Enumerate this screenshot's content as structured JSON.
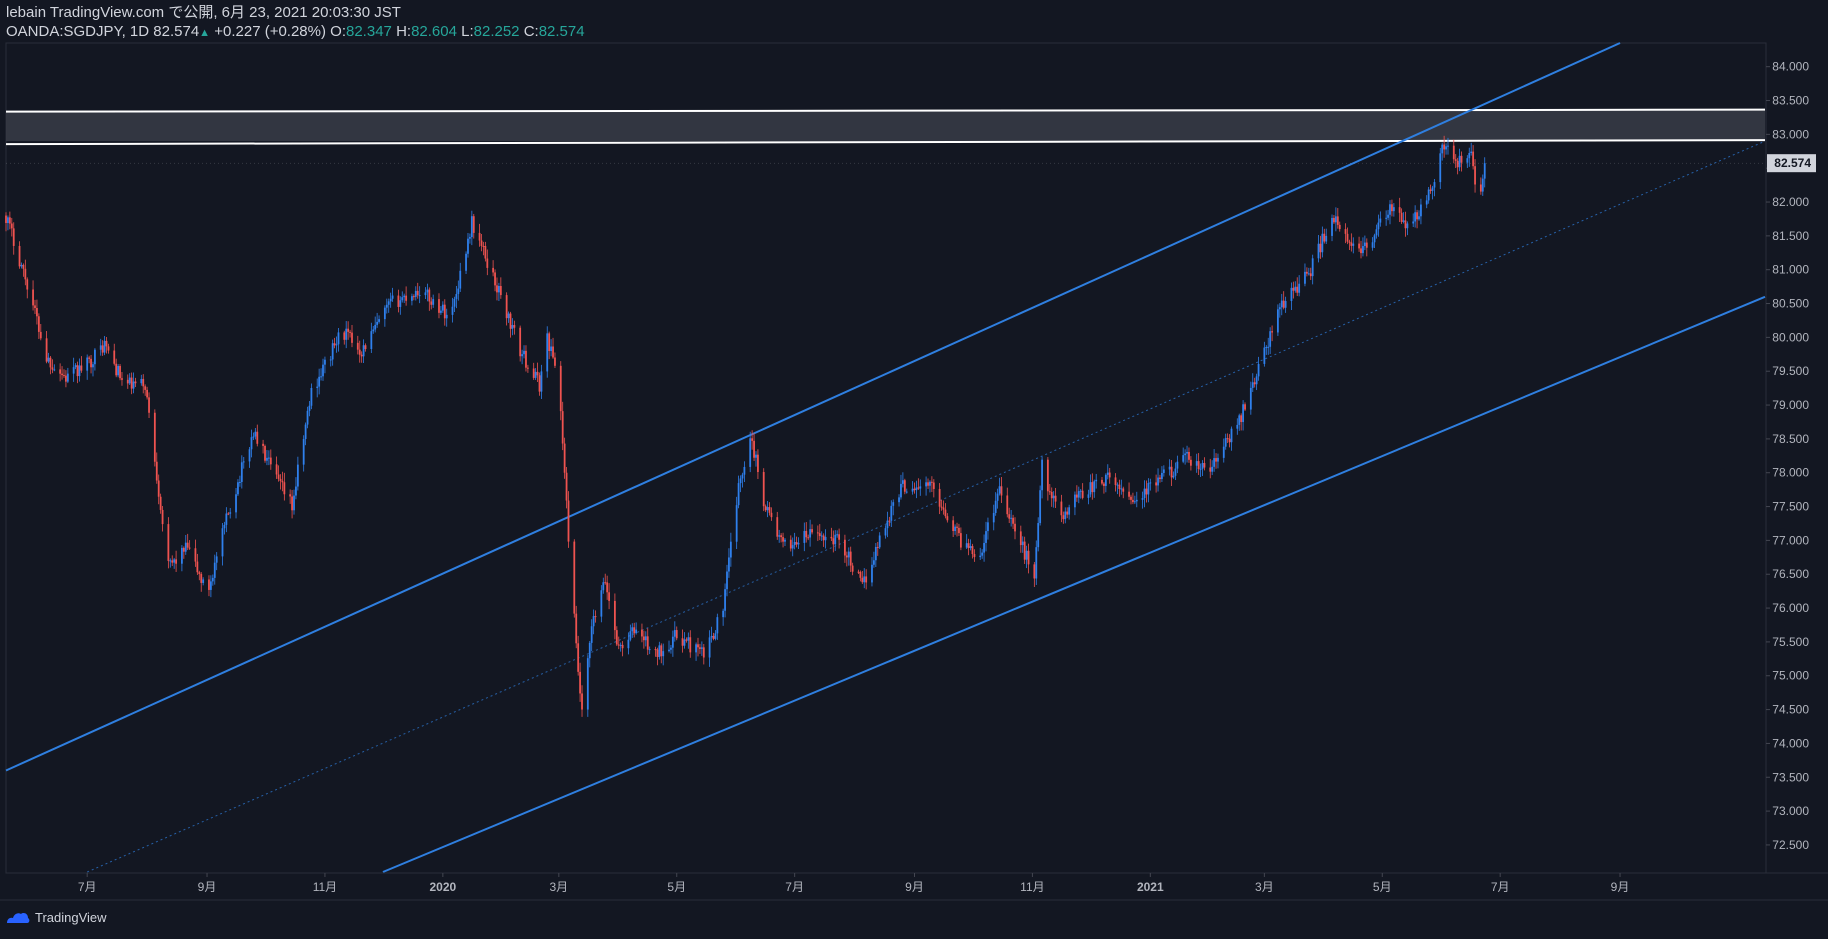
{
  "header": {
    "line1": "lebain TradingView.com で公開, 6月 23, 2021 20:03:30 JST",
    "symbol": "OANDA:SGDJPY, 1D",
    "last": "82.574",
    "arrow": "▲",
    "change": "+0.227 (+0.28%)",
    "o_label": "O:",
    "o_value": "82.347",
    "h_label": "H:",
    "h_value": "82.604",
    "l_label": "L:",
    "l_value": "82.252",
    "c_label": "C:",
    "c_value": "82.574"
  },
  "footer": {
    "brand": "TradingView"
  },
  "colors": {
    "background": "#131722",
    "up": "#2f80ed",
    "down": "#ef5350",
    "channel": "#2f7fe0",
    "resistance": "#ffffff",
    "zone": "#363a45"
  },
  "chart_data": {
    "type": "candlestick",
    "symbol": "OANDA:SGDJPY",
    "interval": "1D",
    "ylim": [
      72.1,
      84.35
    ],
    "y_ticks": [
      "84.000",
      "83.500",
      "83.000",
      "82.500",
      "82.000",
      "81.500",
      "81.000",
      "80.500",
      "80.000",
      "79.500",
      "79.000",
      "78.500",
      "78.000",
      "77.500",
      "77.000",
      "76.500",
      "76.000",
      "75.500",
      "75.000",
      "74.500",
      "74.000",
      "73.500",
      "73.000",
      "72.500"
    ],
    "last_price_label": "82.574",
    "x_range": [
      "2019-05-20",
      "2021-11-15"
    ],
    "x_ticks": [
      {
        "date": "2019-07-01",
        "label": "7月"
      },
      {
        "date": "2019-09-01",
        "label": "9月"
      },
      {
        "date": "2019-11-01",
        "label": "11月"
      },
      {
        "date": "2020-01-01",
        "label": "2020"
      },
      {
        "date": "2020-03-01",
        "label": "3月"
      },
      {
        "date": "2020-05-01",
        "label": "5月"
      },
      {
        "date": "2020-07-01",
        "label": "7月"
      },
      {
        "date": "2020-09-01",
        "label": "9月"
      },
      {
        "date": "2020-11-01",
        "label": "11月"
      },
      {
        "date": "2021-01-01",
        "label": "2021"
      },
      {
        "date": "2021-03-01",
        "label": "3月"
      },
      {
        "date": "2021-05-01",
        "label": "5月"
      },
      {
        "date": "2021-07-01",
        "label": "7月"
      },
      {
        "date": "2021-09-01",
        "label": "9月"
      }
    ],
    "close_path": [
      [
        "2019-05-20",
        81.8
      ],
      [
        "2019-06-01",
        80.7
      ],
      [
        "2019-06-10",
        79.7
      ],
      [
        "2019-06-20",
        79.4
      ],
      [
        "2019-07-01",
        79.6
      ],
      [
        "2019-07-10",
        79.9
      ],
      [
        "2019-07-20",
        79.3
      ],
      [
        "2019-07-31",
        79.3
      ],
      [
        "2019-08-05",
        78.2
      ],
      [
        "2019-08-12",
        76.6
      ],
      [
        "2019-08-22",
        76.9
      ],
      [
        "2019-09-01",
        76.2
      ],
      [
        "2019-09-12",
        77.4
      ],
      [
        "2019-09-25",
        78.6
      ],
      [
        "2019-10-05",
        78.0
      ],
      [
        "2019-10-15",
        77.5
      ],
      [
        "2019-10-25",
        79.2
      ],
      [
        "2019-11-10",
        80.1
      ],
      [
        "2019-11-20",
        79.8
      ],
      [
        "2019-12-05",
        80.5
      ],
      [
        "2019-12-20",
        80.7
      ],
      [
        "2020-01-05",
        80.3
      ],
      [
        "2020-01-16",
        81.7
      ],
      [
        "2020-01-31",
        80.6
      ],
      [
        "2020-02-10",
        79.8
      ],
      [
        "2020-02-20",
        79.3
      ],
      [
        "2020-02-24",
        80.0
      ],
      [
        "2020-03-01",
        79.4
      ],
      [
        "2020-03-05",
        77.5
      ],
      [
        "2020-03-10",
        75.4
      ],
      [
        "2020-03-13",
        74.4
      ],
      [
        "2020-03-18",
        75.7
      ],
      [
        "2020-03-25",
        76.4
      ],
      [
        "2020-04-01",
        75.4
      ],
      [
        "2020-04-10",
        75.7
      ],
      [
        "2020-04-20",
        75.3
      ],
      [
        "2020-05-01",
        75.6
      ],
      [
        "2020-05-15",
        75.3
      ],
      [
        "2020-05-25",
        76.0
      ],
      [
        "2020-06-01",
        77.6
      ],
      [
        "2020-06-08",
        78.6
      ],
      [
        "2020-06-15",
        77.6
      ],
      [
        "2020-06-25",
        76.9
      ],
      [
        "2020-07-10",
        77.1
      ],
      [
        "2020-07-25",
        77.0
      ],
      [
        "2020-08-05",
        76.3
      ],
      [
        "2020-08-15",
        77.1
      ],
      [
        "2020-08-25",
        77.8
      ],
      [
        "2020-09-10",
        77.8
      ],
      [
        "2020-09-25",
        77.0
      ],
      [
        "2020-10-05",
        76.8
      ],
      [
        "2020-10-15",
        77.8
      ],
      [
        "2020-10-25",
        77.0
      ],
      [
        "2020-11-02",
        76.5
      ],
      [
        "2020-11-06",
        78.1
      ],
      [
        "2020-11-15",
        77.3
      ],
      [
        "2020-11-25",
        77.7
      ],
      [
        "2020-12-10",
        77.9
      ],
      [
        "2020-12-25",
        77.6
      ],
      [
        "2021-01-10",
        78.0
      ],
      [
        "2021-01-20",
        78.2
      ],
      [
        "2021-01-31",
        78.0
      ],
      [
        "2021-02-15",
        78.7
      ],
      [
        "2021-02-28",
        79.7
      ],
      [
        "2021-03-10",
        80.5
      ],
      [
        "2021-03-25",
        81.0
      ],
      [
        "2021-04-05",
        81.8
      ],
      [
        "2021-04-15",
        81.3
      ],
      [
        "2021-04-25",
        81.4
      ],
      [
        "2021-05-05",
        81.9
      ],
      [
        "2021-05-15",
        81.6
      ],
      [
        "2021-05-25",
        82.1
      ],
      [
        "2021-06-01",
        82.8
      ],
      [
        "2021-06-10",
        82.6
      ],
      [
        "2021-06-16",
        82.7
      ],
      [
        "2021-06-19",
        81.9
      ],
      [
        "2021-06-23",
        82.574
      ]
    ],
    "annotations": [
      {
        "type": "channel-upper",
        "from": [
          "2019-05-20",
          73.6
        ],
        "to": [
          "2021-09-01",
          84.35
        ]
      },
      {
        "type": "channel-mid",
        "from": [
          "2019-07-01",
          72.1
        ],
        "to": [
          "2021-11-15",
          82.9
        ]
      },
      {
        "type": "channel-lower",
        "from": [
          "2019-12-01",
          72.1
        ],
        "to": [
          "2021-11-15",
          80.6
        ]
      },
      {
        "type": "resistance-zone",
        "top": 83.35,
        "bottom": 82.9
      }
    ]
  }
}
